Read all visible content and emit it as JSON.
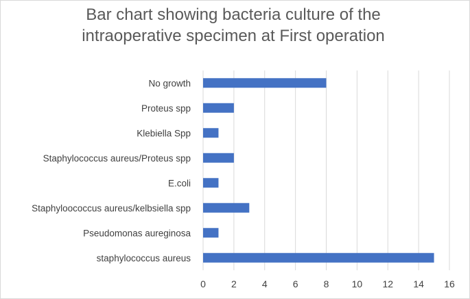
{
  "chart_data": {
    "type": "bar",
    "orientation": "horizontal",
    "title_lines": [
      "Bar chart showing bacteria culture of the",
      "intraoperative specimen at First operation"
    ],
    "xlabel": "",
    "ylabel": "",
    "categories": [
      "No growth",
      "Proteus spp",
      "Klebiella Spp",
      "Staphylococcus aureus/Proteus spp",
      "E.coli",
      "Staphyloococcus aureus/kelbsiella spp",
      "Pseudomonas aureginosa",
      "staphylococcus aureus"
    ],
    "values": [
      8,
      2,
      1,
      2,
      1,
      3,
      1,
      15
    ],
    "xlim": [
      0,
      16
    ],
    "xticks": [
      "0",
      "2",
      "4",
      "6",
      "8",
      "10",
      "12",
      "14",
      "16"
    ],
    "grid": "vertical",
    "legend": "none",
    "bar_color": "#4472c4"
  }
}
